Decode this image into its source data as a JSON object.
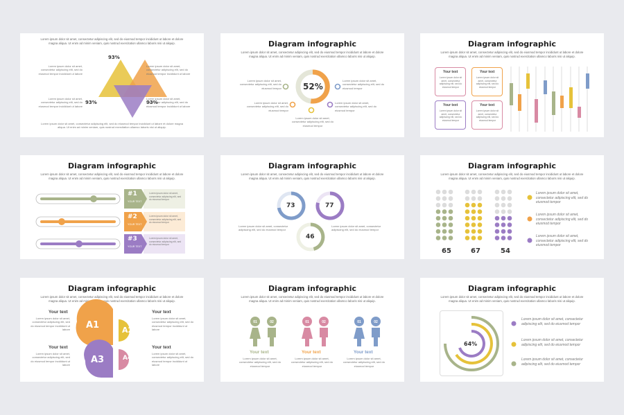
{
  "colors": {
    "green": "#a8b48a",
    "orange": "#f0a24a",
    "yellow": "#e6c23a",
    "purple": "#9b7cc4",
    "pink": "#d88aa3",
    "blue": "#7f9cc9",
    "bg": "#e9eaee"
  },
  "common": {
    "title": "Diagram infographic",
    "lead": "Lorem ipsum dolor sit amet, consectetur adipiscing elit, sed do eiusmod tempor incididunt ut labore et dolore magna aliqua. Ut enim ad minim veniam, quis nostrud exercitation ullamco laboris nisi ut aliquip.",
    "small": "Lorem ipsum dolor sit amet, consectetur adipiscing elit, sed do eiusmod tempor incididunt ut labore",
    "small_short": "Lorem ipsum dolor sit amet, consectetur adipiscing elit, sed do eiusmod tempor",
    "your_text": "Your text"
  },
  "slide1": {
    "pct_top": "93%",
    "pct_left": "93%",
    "pct_right": "93%"
  },
  "slide2": {
    "center_pct": "52%"
  },
  "slide4": {
    "labels": [
      "#1",
      "#2",
      "#3"
    ],
    "sub": "YOUR TEXT",
    "levels": [
      0.62,
      0.3,
      0.48
    ]
  },
  "slide5": {
    "values": [
      "73",
      "77",
      "46"
    ]
  },
  "slide6": {
    "values": [
      "65",
      "67",
      "54"
    ],
    "legend": "Lorem ipsum dolor sit amet, consectetur adipiscing elit, sed do eiusmod tempor"
  },
  "slide7": {
    "labels": [
      "A1",
      "A2",
      "A3",
      "A4"
    ]
  },
  "slide8": {
    "badges": [
      "01",
      "02"
    ]
  },
  "slide9": {
    "center_pct": "64%",
    "legend": "Lorem ipsum dolor sit amet, consectetur adipiscing elit, sed do eiusmod tempor"
  }
}
